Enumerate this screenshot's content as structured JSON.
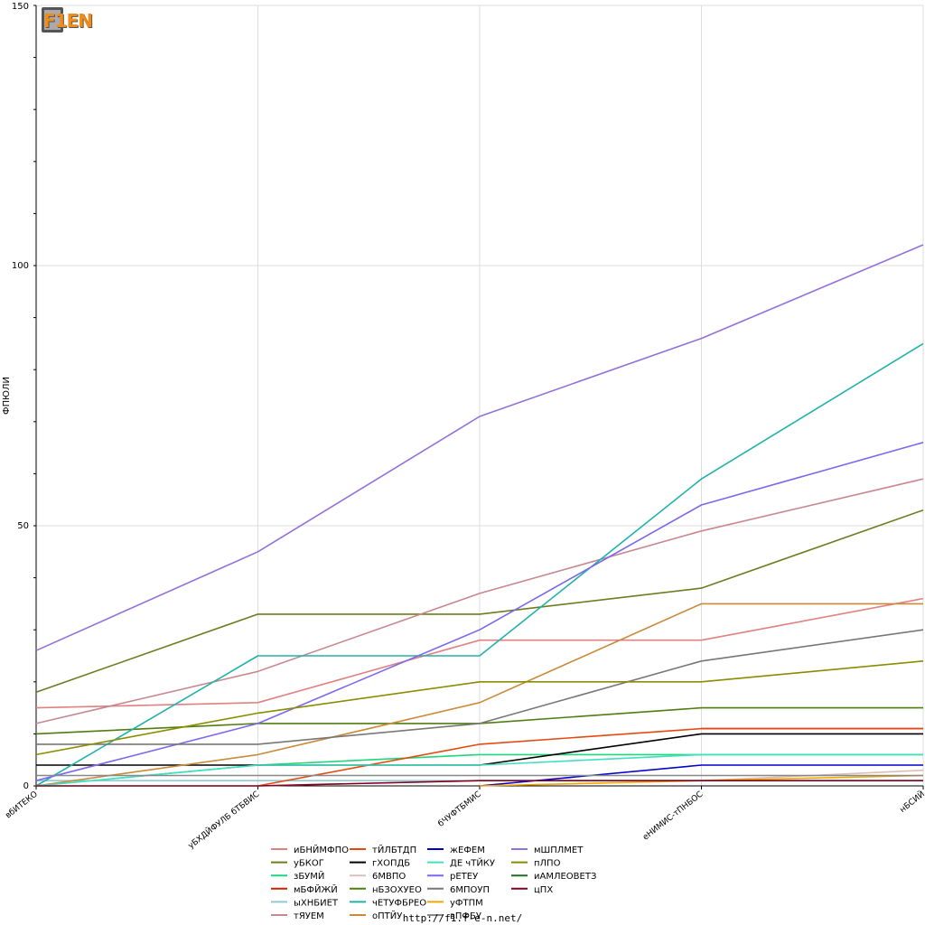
{
  "logo": {
    "text": "F1EN"
  },
  "footer": {
    "url": "http://f1.f-e-n.net/"
  },
  "chart_data": {
    "type": "line",
    "title": "",
    "xlabel": "",
    "ylabel": "ФПЮЛИ",
    "ylim": [
      0,
      150
    ],
    "yticks": [
      0,
      50,
      100,
      150
    ],
    "grid": true,
    "legend": "bottom",
    "categories": [
      "вбИТЕКО",
      "уБХДЙФУЛБ бТБВИС",
      "бЧУФТБМИС",
      "еНИМИС-тПНБОС",
      "нБСИЙ"
    ],
    "series": [
      {
        "name": "иБНЙМФПО",
        "color": "#e08080",
        "values": [
          15,
          16,
          28,
          28,
          36
        ]
      },
      {
        "name": "уБКОГ",
        "color": "#6b7d1f",
        "values": [
          18,
          33,
          33,
          38,
          53
        ]
      },
      {
        "name": "зБУМЙ",
        "color": "#1fd67a",
        "values": [
          0,
          4,
          6,
          6,
          6
        ]
      },
      {
        "name": "мБФЙЖЙ",
        "color": "#cc2200",
        "values": [
          null,
          null,
          null,
          11,
          11
        ]
      },
      {
        "name": "ыХНБИЕТ",
        "color": "#8fc9d6",
        "values": [
          1,
          1,
          1,
          1,
          1
        ]
      },
      {
        "name": "тЯУЕМ",
        "color": "#c98890",
        "values": [
          12,
          22,
          37,
          49,
          59
        ]
      },
      {
        "name": "тЙЛБТДП",
        "color": "#e34a10",
        "values": [
          null,
          0,
          8,
          11,
          11
        ]
      },
      {
        "name": "гХОПДБ",
        "color": "#000000",
        "values": [
          4,
          4,
          4,
          10,
          10
        ]
      },
      {
        "name": "6МВПО",
        "color": "#d8c0b8",
        "values": [
          0,
          0,
          1,
          1,
          3
        ]
      },
      {
        "name": "нБЗОХУЕО",
        "color": "#4f7d0f",
        "values": [
          10,
          12,
          12,
          15,
          15
        ]
      },
      {
        "name": "чЕТУФБРЕО",
        "color": "#20b2aa",
        "values": [
          0,
          25,
          25,
          59,
          85
        ]
      },
      {
        "name": "оПТЙУ",
        "color": "#c98a3a",
        "values": [
          0,
          6,
          16,
          35,
          35
        ]
      },
      {
        "name": "жЕФЕМ",
        "color": "#0000cc",
        "values": [
          null,
          null,
          0,
          4,
          4
        ]
      },
      {
        "name": "ДЕ чТЙКУ",
        "color": "#40e0c0",
        "values": [
          0,
          4,
          4,
          6,
          6
        ]
      },
      {
        "name": "рЕТЕУ",
        "color": "#7b68ee",
        "values": [
          1,
          12,
          30,
          54,
          66
        ]
      },
      {
        "name": "6МПОУП",
        "color": "#777777",
        "values": [
          8,
          8,
          12,
          24,
          30
        ]
      },
      {
        "name": "уФТПМ",
        "color": "#f0a800",
        "values": [
          null,
          null,
          0,
          1,
          2
        ]
      },
      {
        "name": "вПФБУ",
        "color": "#888888",
        "values": [
          2,
          2,
          2,
          2,
          2
        ]
      },
      {
        "name": "мШПЛМЕТ",
        "color": "#9370db",
        "values": [
          26,
          45,
          71,
          86,
          104
        ]
      },
      {
        "name": "пЛПО",
        "color": "#8b8b00",
        "values": [
          6,
          14,
          20,
          20,
          24
        ]
      },
      {
        "name": "иАМЛЕОВЕТЗ",
        "color": "#1f6b1f",
        "values": [
          null,
          null,
          null,
          null,
          null
        ]
      },
      {
        "name": "цПХ",
        "color": "#800020",
        "values": [
          0,
          0,
          1,
          1,
          1
        ]
      }
    ]
  }
}
